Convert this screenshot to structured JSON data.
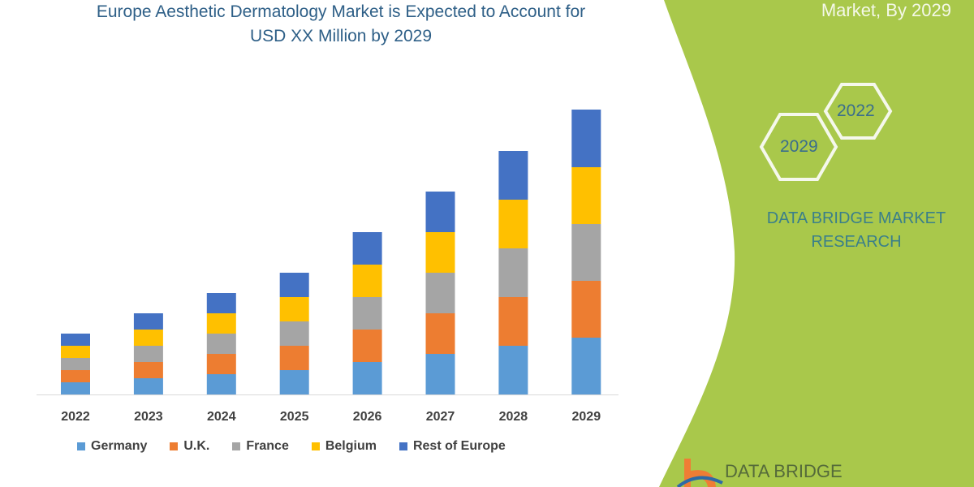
{
  "header": {
    "title_line1": "Europe Aesthetic Dermatology Market is Expected to Account for",
    "title_line2": "USD XX Million by 2029",
    "corner_text": "Market, By 2029"
  },
  "side_panel": {
    "hex_badges": [
      "2022",
      "2029"
    ],
    "brand_line1": "DATA BRIDGE MARKET",
    "brand_line2": "RESEARCH",
    "logo_text": "DATA BRIDGE",
    "panel_color": "#a9c84b"
  },
  "chart_data": {
    "type": "bar",
    "stacked": true,
    "title": "Europe Aesthetic Dermatology Market is Expected to Account for USD XX Million by 2029",
    "xlabel": "",
    "ylabel": "",
    "y_axis_shown": false,
    "grid": false,
    "legend_position": "bottom",
    "categories": [
      "2022",
      "2023",
      "2024",
      "2025",
      "2026",
      "2027",
      "2028",
      "2029"
    ],
    "ylim": [
      0,
      360
    ],
    "series": [
      {
        "name": "Germany",
        "color": "#5b9bd5",
        "values": [
          15,
          20,
          25,
          30,
          40,
          50,
          60,
          70
        ]
      },
      {
        "name": "U.K.",
        "color": "#ed7d31",
        "values": [
          15,
          20,
          25,
          30,
          40,
          50,
          60,
          70
        ]
      },
      {
        "name": "France",
        "color": "#a5a5a5",
        "values": [
          15,
          20,
          25,
          30,
          40,
          50,
          60,
          70
        ]
      },
      {
        "name": "Belgium",
        "color": "#ffc000",
        "values": [
          15,
          20,
          25,
          30,
          40,
          50,
          60,
          70
        ]
      },
      {
        "name": "Rest of Europe",
        "color": "#4472c4",
        "values": [
          15,
          20,
          25,
          30,
          40,
          50,
          60,
          71
        ]
      }
    ]
  }
}
